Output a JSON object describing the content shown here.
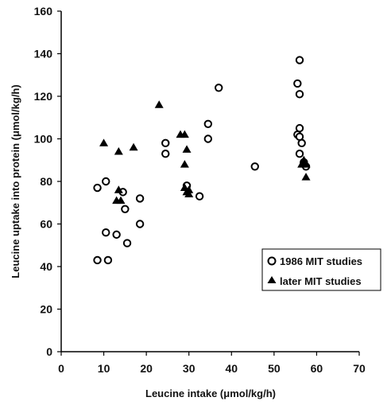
{
  "chart_data": {
    "type": "scatter",
    "xlabel": "Leucine intake (μmol/kg/h)",
    "ylabel": "Leucine uptake into protein (μmol/kg/h)",
    "xlim": [
      0,
      70
    ],
    "ylim": [
      0,
      160
    ],
    "x_ticks": [
      "0",
      "10",
      "20",
      "30",
      "40",
      "50",
      "60",
      "70"
    ],
    "y_ticks": [
      "0",
      "20",
      "40",
      "60",
      "80",
      "100",
      "120",
      "140",
      "160"
    ],
    "grid": false,
    "legend_position": "right",
    "series": [
      {
        "name": "1986 MIT studies",
        "marker": "open-circle",
        "color": "#000000",
        "points": [
          [
            8.5,
            77
          ],
          [
            10.5,
            80
          ],
          [
            8.5,
            43
          ],
          [
            10.5,
            56
          ],
          [
            11,
            43
          ],
          [
            13,
            55
          ],
          [
            14.5,
            75
          ],
          [
            15,
            67
          ],
          [
            15.5,
            51
          ],
          [
            18.5,
            72
          ],
          [
            18.5,
            60
          ],
          [
            24.5,
            98
          ],
          [
            24.5,
            93
          ],
          [
            29.5,
            78
          ],
          [
            32.5,
            73
          ],
          [
            34.5,
            107
          ],
          [
            34.5,
            100
          ],
          [
            37,
            124
          ],
          [
            45.5,
            87
          ],
          [
            55.5,
            126
          ],
          [
            55.5,
            102
          ],
          [
            56,
            137
          ],
          [
            56,
            121
          ],
          [
            56,
            105
          ],
          [
            56,
            101
          ],
          [
            56,
            93
          ],
          [
            56.5,
            98
          ],
          [
            57,
            89
          ],
          [
            57.5,
            87
          ]
        ]
      },
      {
        "name": "later MIT studies",
        "marker": "filled-triangle",
        "color": "#000000",
        "points": [
          [
            10,
            98
          ],
          [
            13.5,
            94
          ],
          [
            17,
            96
          ],
          [
            13.5,
            76
          ],
          [
            13,
            71
          ],
          [
            14,
            71
          ],
          [
            23,
            116
          ],
          [
            28,
            102
          ],
          [
            29,
            102
          ],
          [
            29.5,
            95
          ],
          [
            29,
            88
          ],
          [
            29,
            77
          ],
          [
            29.5,
            75
          ],
          [
            30,
            76
          ],
          [
            30,
            74
          ],
          [
            56.5,
            88
          ],
          [
            57,
            90
          ],
          [
            57.5,
            88
          ],
          [
            57.5,
            82
          ]
        ]
      }
    ]
  }
}
